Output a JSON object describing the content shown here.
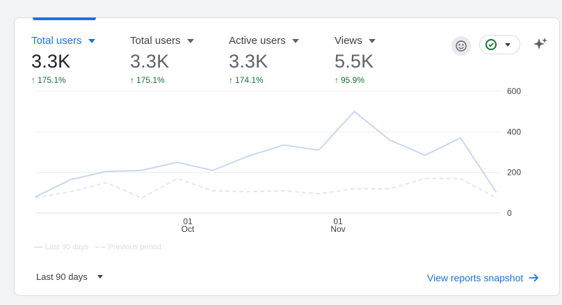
{
  "metrics": [
    {
      "label": "Total users",
      "value": "3.3K",
      "change": "175.1%",
      "active": true
    },
    {
      "label": "Total users",
      "value": "3.3K",
      "change": "175.1%",
      "active": false
    },
    {
      "label": "Active users",
      "value": "3.3K",
      "change": "174.1%",
      "active": false
    },
    {
      "label": "Views",
      "value": "5.5K",
      "change": "95.9%",
      "active": false
    }
  ],
  "toolbar": {
    "insights_icon": "insights-avatar-icon",
    "status_icon": "check-circle-icon",
    "sparkle_icon": "sparkle-icon"
  },
  "colors": {
    "accent": "#1a73e8",
    "positive": "#137333",
    "current_series": "#c8d7f0",
    "previous_series": "#e3e7ee"
  },
  "chart_data": {
    "type": "line",
    "y_ticks": [
      "600",
      "400",
      "200",
      "0"
    ],
    "ylim": [
      0,
      600
    ],
    "x_tick_labels": [
      {
        "day": "01",
        "month": "Oct"
      },
      {
        "day": "01",
        "month": "Nov"
      }
    ],
    "series": [
      {
        "name": "Last 90 days",
        "style": "solid",
        "values": [
          80,
          165,
          205,
          210,
          250,
          210,
          280,
          335,
          310,
          500,
          360,
          285,
          370,
          105
        ]
      },
      {
        "name": "Previous period",
        "style": "dashed",
        "values": [
          75,
          105,
          150,
          75,
          170,
          110,
          105,
          110,
          95,
          120,
          120,
          170,
          170,
          75
        ]
      }
    ],
    "grid": true
  },
  "footer": {
    "date_range": "Last 90 days",
    "view_link": "View reports snapshot"
  }
}
